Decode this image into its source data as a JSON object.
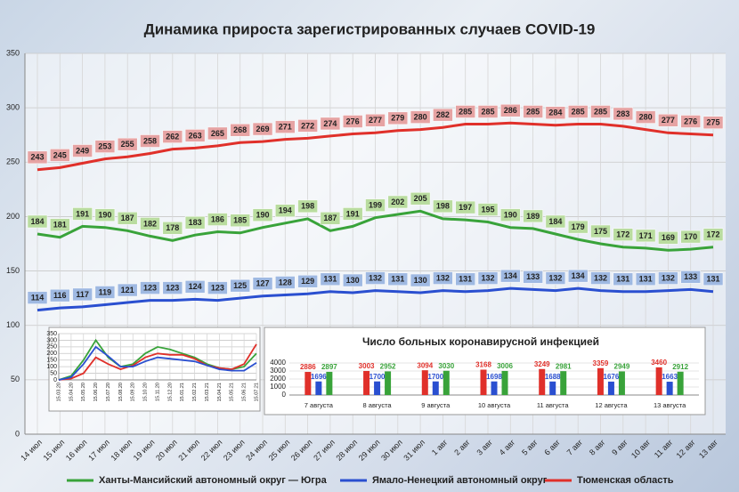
{
  "chart_data": [
    {
      "type": "line",
      "title": "Динамика прироста зарегистрированных случаев COVID-19",
      "categories": [
        "14 июл",
        "15 июл",
        "16 июл",
        "17 июл",
        "18 июл",
        "19 июл",
        "20 июл",
        "21 июл",
        "22 июл",
        "23 июл",
        "24 июл",
        "25 июл",
        "26 июл",
        "27 июл",
        "28 июл",
        "29 июл",
        "30 июл",
        "31 июл",
        "1 авг",
        "2 авг",
        "3 авг",
        "4 авг",
        "5 авг",
        "6 авг",
        "7 авг",
        "8 авг",
        "9 авг",
        "10 авг",
        "11 авг",
        "12 авг",
        "13 авг"
      ],
      "series": [
        {
          "name": "Ханты-Мансийский автономный округ — Югра",
          "color": "#39a33a",
          "label_color": "#b9dc9f",
          "values": [
            184,
            181,
            191,
            190,
            187,
            182,
            178,
            183,
            186,
            185,
            190,
            194,
            198,
            187,
            191,
            199,
            202,
            205,
            198,
            197,
            195,
            190,
            189,
            184,
            179,
            175,
            172,
            171,
            169,
            170,
            172
          ]
        },
        {
          "name": "Ямало-Ненецкий автономный округ",
          "color": "#2a4fd0",
          "label_color": "#9fb9e2",
          "values": [
            114,
            116,
            117,
            119,
            121,
            123,
            123,
            124,
            123,
            125,
            127,
            128,
            129,
            131,
            130,
            132,
            131,
            130,
            132,
            131,
            132,
            134,
            133,
            132,
            134,
            132,
            131,
            131,
            132,
            133,
            131
          ]
        },
        {
          "name": "Тюменская область",
          "color": "#e0302a",
          "label_color": "#e6a3a3",
          "values": [
            243,
            245,
            249,
            253,
            255,
            258,
            262,
            263,
            265,
            268,
            269,
            271,
            272,
            274,
            276,
            277,
            279,
            280,
            282,
            285,
            285,
            286,
            285,
            284,
            285,
            285,
            283,
            280,
            277,
            276,
            275
          ]
        }
      ],
      "ylim": [
        0,
        350
      ],
      "yticks": [
        0,
        50,
        100,
        150,
        200,
        250,
        300,
        350
      ],
      "grid": true,
      "legend": "bottom"
    },
    {
      "type": "line",
      "categories": [
        "15.03.20",
        "15.04.20",
        "15.05.20",
        "15.06.20",
        "15.07.20",
        "15.08.20",
        "15.09.20",
        "15.10.20",
        "15.11.20",
        "15.12.20",
        "15.01.21",
        "15.02.21",
        "15.03.21",
        "15.04.21",
        "15.05.21",
        "15.06.21",
        "15.07.21"
      ],
      "series": [
        {
          "color": "#39a33a",
          "values": [
            0,
            30,
            150,
            300,
            170,
            100,
            120,
            200,
            250,
            230,
            200,
            170,
            120,
            90,
            80,
            100,
            200
          ]
        },
        {
          "color": "#e0302a",
          "values": [
            0,
            10,
            50,
            170,
            120,
            80,
            110,
            170,
            200,
            190,
            190,
            160,
            110,
            90,
            80,
            120,
            270
          ]
        },
        {
          "color": "#2a4fd0",
          "values": [
            0,
            20,
            120,
            250,
            180,
            100,
            100,
            140,
            170,
            160,
            150,
            140,
            110,
            80,
            70,
            70,
            130
          ]
        }
      ],
      "ylim": [
        0,
        350
      ],
      "yticks": [
        0,
        50,
        100,
        150,
        200,
        250,
        300,
        350
      ],
      "grid": true
    },
    {
      "type": "bar",
      "title": "Число больных коронавирусной инфекцией",
      "categories": [
        "7 августа",
        "8 августа",
        "9 августа",
        "10 августа",
        "11 августа",
        "12 августа",
        "13 августа"
      ],
      "series": [
        {
          "color": "#e0302a",
          "values": [
            2886,
            3003,
            3094,
            3168,
            3249,
            3359,
            3460
          ]
        },
        {
          "color": "#2a4fd0",
          "values": [
            1696,
            1700,
            1700,
            1698,
            1688,
            1676,
            1663
          ]
        },
        {
          "color": "#39a33a",
          "values": [
            2897,
            2952,
            3030,
            3006,
            2981,
            2949,
            2912
          ]
        }
      ],
      "ylim": [
        0,
        4000
      ],
      "yticks": [
        0,
        1000,
        2000,
        3000,
        4000
      ],
      "grid": true
    }
  ]
}
